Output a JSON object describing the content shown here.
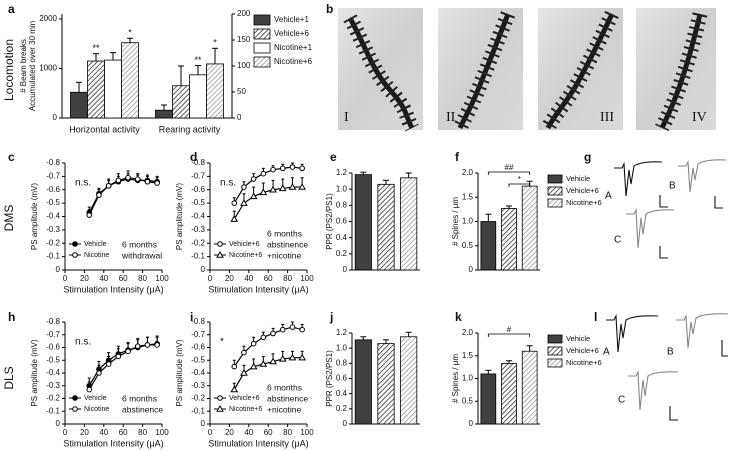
{
  "row_labels": [
    "Locomotion",
    "DMS",
    "DLS"
  ],
  "images": {
    "letter": "b",
    "labels": [
      "I",
      "II",
      "III",
      "IV"
    ]
  },
  "traces": [
    {
      "letter": "g",
      "labels": [
        "A",
        "B",
        "C"
      ]
    },
    {
      "letter": "l",
      "labels": [
        "A",
        "B",
        "C"
      ]
    }
  ],
  "chart_data": [
    {
      "letter": "a",
      "type": "bar",
      "ylabel": [
        "# Beam breaks",
        "Accumulated over 30 min"
      ],
      "categories": [
        "Horizontal activity",
        "Rearing activity"
      ],
      "category_axis": [
        "y",
        "y2"
      ],
      "ylim": [
        0,
        2100
      ],
      "yticks": [
        0,
        1000,
        2000
      ],
      "y2lim": [
        0,
        200
      ],
      "y2ticks": [
        0,
        50,
        100,
        150,
        200
      ],
      "series": [
        {
          "name": "Vehicle+1",
          "color": "#404040",
          "values": [
            520,
            15
          ],
          "errors": [
            200,
            10
          ]
        },
        {
          "name": "Vehicle+6",
          "color": "#ffffff",
          "hatch": "#333333",
          "values": [
            1150,
            62
          ],
          "errors": [
            150,
            38
          ]
        },
        {
          "name": "Nicotine+1",
          "color": "#ffffff",
          "values": [
            1170,
            83
          ],
          "errors": [
            150,
            18
          ]
        },
        {
          "name": "Nicotine+6",
          "color": "#ffffff",
          "hatch": "#9a9a9a",
          "values": [
            1520,
            104
          ],
          "errors": [
            90,
            30
          ]
        }
      ],
      "annotations": [
        "**",
        "*",
        "**",
        "*"
      ]
    },
    {
      "letter": "c",
      "type": "line",
      "xlabel": "Stimulation Intensity (μA)",
      "ylabel": "PS amplitude (mV)",
      "x": [
        25,
        35,
        45,
        55,
        65,
        75,
        85,
        95
      ],
      "xlim": [
        0,
        100
      ],
      "xticks": [
        0,
        20,
        40,
        60,
        80,
        100
      ],
      "ylim": [
        0,
        -0.8
      ],
      "yticks": [
        0,
        -0.1,
        -0.2,
        -0.3,
        -0.4,
        -0.5,
        -0.6,
        -0.7,
        -0.8
      ],
      "series": [
        {
          "name": "Vehicle",
          "color": "#000000",
          "marker": "filled-circle",
          "values": [
            -0.43,
            -0.57,
            -0.63,
            -0.66,
            -0.68,
            -0.67,
            -0.67,
            -0.66
          ],
          "errors": [
            0.04,
            0.04,
            0.04,
            0.04,
            0.04,
            0.04,
            0.04,
            0.04
          ]
        },
        {
          "name": "Nicotine",
          "color": "#000000",
          "marker": "open-circle",
          "values": [
            -0.41,
            -0.56,
            -0.63,
            -0.67,
            -0.69,
            -0.68,
            -0.66,
            -0.65
          ],
          "errors": [
            0.04,
            0.04,
            0.05,
            0.05,
            0.05,
            0.04,
            0.04,
            0.04
          ]
        }
      ],
      "legend": "lower left",
      "annotations": [
        "n.s."
      ],
      "condition": [
        "6 months",
        "withdrawal"
      ]
    },
    {
      "letter": "d",
      "type": "line",
      "xlabel": "Stimulation Intensity (μA)",
      "ylabel": "PS amplitude (mV)",
      "x": [
        25,
        35,
        45,
        55,
        65,
        75,
        85,
        95
      ],
      "xlim": [
        0,
        100
      ],
      "xticks": [
        0,
        20,
        40,
        60,
        80,
        100
      ],
      "ylim": [
        0,
        -0.8
      ],
      "yticks": [
        0,
        -0.1,
        -0.2,
        -0.3,
        -0.4,
        -0.5,
        -0.6,
        -0.7,
        -0.8
      ],
      "series": [
        {
          "name": "Vehicle+6",
          "color": "#000000",
          "marker": "open-circle",
          "values": [
            -0.5,
            -0.62,
            -0.68,
            -0.72,
            -0.75,
            -0.76,
            -0.77,
            -0.76
          ],
          "errors": [
            0.04,
            0.04,
            0.04,
            0.04,
            0.03,
            0.03,
            0.03,
            0.03
          ]
        },
        {
          "name": "Nicotine+6",
          "color": "#000000",
          "marker": "open-triangle",
          "values": [
            -0.38,
            -0.5,
            -0.55,
            -0.58,
            -0.6,
            -0.61,
            -0.62,
            -0.62
          ],
          "errors": [
            0.06,
            0.07,
            0.07,
            0.07,
            0.07,
            0.07,
            0.07,
            0.07
          ]
        }
      ],
      "legend": "lower left",
      "annotations": [
        "n.s."
      ],
      "condition": [
        "6 months",
        "abstinence",
        "+nicotine"
      ]
    },
    {
      "letter": "e",
      "type": "bar",
      "ylabel": "PPR (PS2/PS1)",
      "ylim": [
        0,
        1.2
      ],
      "yticks": [
        0,
        0.2,
        0.4,
        0.6,
        0.8,
        {
          "value": 1,
          "label": "1.0"
        },
        1.2
      ],
      "bars": [
        {
          "color": "#404040"
        },
        {
          "color": "#ffffff",
          "hatch": "#333333"
        },
        {
          "color": "#ffffff",
          "hatch": "#9a9a9a"
        }
      ],
      "values": [
        1.18,
        1.06,
        1.14
      ],
      "errors": [
        0.03,
        0.05,
        0.06
      ]
    },
    {
      "letter": "f",
      "type": "bar",
      "ylabel": "# Spines / μm",
      "ylim": [
        0,
        2
      ],
      "yticks": [
        0,
        0.5,
        {
          "value": 1,
          "label": "1.0"
        },
        1.5,
        {
          "value": 2,
          "label": "2.0"
        }
      ],
      "bars": [
        {
          "name": "Vehicle",
          "color": "#404040"
        },
        {
          "name": "Vehicle+6",
          "color": "#ffffff",
          "hatch": "#333333"
        },
        {
          "name": "Nicotine+6",
          "color": "#ffffff",
          "hatch": "#9a9a9a"
        }
      ],
      "values": [
        1.0,
        1.27,
        1.73
      ],
      "errors": [
        0.15,
        0.05,
        0.1
      ],
      "annotations": [
        "##",
        "*"
      ]
    },
    {
      "letter": "h",
      "type": "line",
      "xlabel": "Stimulation Intensity (μA)",
      "ylabel": "PS amplitude (mV)",
      "x": [
        25,
        35,
        45,
        55,
        65,
        75,
        85,
        95
      ],
      "xlim": [
        0,
        100
      ],
      "xticks": [
        0,
        20,
        40,
        60,
        80,
        100
      ],
      "ylim": [
        0,
        -0.8
      ],
      "yticks": [
        0,
        -0.1,
        -0.2,
        -0.3,
        -0.4,
        -0.5,
        -0.6,
        -0.7,
        -0.8
      ],
      "series": [
        {
          "name": "Vehicle",
          "color": "#000000",
          "marker": "filled-circle",
          "values": [
            -0.3,
            -0.43,
            -0.5,
            -0.55,
            -0.58,
            -0.6,
            -0.62,
            -0.63
          ],
          "errors": [
            0.06,
            0.06,
            0.06,
            0.06,
            0.06,
            0.06,
            0.06,
            0.06
          ]
        },
        {
          "name": "Nicotine",
          "color": "#000000",
          "marker": "open-circle",
          "values": [
            -0.27,
            -0.4,
            -0.47,
            -0.53,
            -0.57,
            -0.61,
            -0.62,
            -0.62
          ],
          "errors": [
            0.06,
            0.06,
            0.06,
            0.06,
            0.06,
            0.06,
            0.06,
            0.06
          ]
        }
      ],
      "legend": "lower left",
      "annotations": [
        "n.s."
      ],
      "condition": [
        "6 months",
        "abstinence"
      ]
    },
    {
      "letter": "i",
      "type": "line",
      "xlabel": "Stimulation Intensity (μA)",
      "ylabel": "PS amplitude (mV)",
      "x": [
        25,
        35,
        45,
        55,
        65,
        75,
        85,
        95
      ],
      "xlim": [
        0,
        100
      ],
      "xticks": [
        0,
        20,
        40,
        60,
        80,
        100
      ],
      "ylim": [
        0,
        -0.8
      ],
      "yticks": [
        0,
        -0.1,
        -0.2,
        -0.3,
        -0.4,
        -0.5,
        -0.6,
        -0.7,
        -0.8
      ],
      "series": [
        {
          "name": "Vehicle+6",
          "color": "#000000",
          "marker": "open-circle",
          "values": [
            -0.45,
            -0.56,
            -0.63,
            -0.68,
            -0.71,
            -0.74,
            -0.76,
            -0.74
          ],
          "errors": [
            0.05,
            0.05,
            0.05,
            0.04,
            0.04,
            0.04,
            0.04,
            0.04
          ]
        },
        {
          "name": "Nicotine+6",
          "color": "#000000",
          "marker": "open-triangle",
          "values": [
            -0.27,
            -0.4,
            -0.45,
            -0.47,
            -0.49,
            -0.51,
            -0.52,
            -0.52
          ],
          "errors": [
            0.05,
            0.06,
            0.06,
            0.06,
            0.06,
            0.06,
            0.05,
            0.05
          ]
        }
      ],
      "legend": "lower left",
      "annotations": [
        "*"
      ],
      "condition": [
        "6 months",
        "abstinence",
        "+nicotine"
      ]
    },
    {
      "letter": "j",
      "type": "bar",
      "ylabel": "PPR (PS2/PS1)",
      "ylim": [
        0,
        1.2
      ],
      "yticks": [
        0,
        0.2,
        0.4,
        0.6,
        0.8,
        {
          "value": 1,
          "label": "1.0"
        },
        1.2
      ],
      "bars": [
        {
          "color": "#404040"
        },
        {
          "color": "#ffffff",
          "hatch": "#333333"
        },
        {
          "color": "#ffffff",
          "hatch": "#9a9a9a"
        }
      ],
      "values": [
        1.11,
        1.06,
        1.15
      ],
      "errors": [
        0.04,
        0.05,
        0.06
      ]
    },
    {
      "letter": "k",
      "type": "bar",
      "ylabel": "# Spines / μm",
      "ylim": [
        0,
        2
      ],
      "yticks": [
        0,
        0.5,
        {
          "value": 1,
          "label": "1.0"
        },
        1.5,
        {
          "value": 2,
          "label": "2.0"
        }
      ],
      "bars": [
        {
          "name": "Vehicle",
          "color": "#404040"
        },
        {
          "name": "Vehicle+6",
          "color": "#ffffff",
          "hatch": "#333333"
        },
        {
          "name": "Nicotine+6",
          "color": "#ffffff",
          "hatch": "#9a9a9a"
        }
      ],
      "values": [
        1.1,
        1.33,
        1.6
      ],
      "errors": [
        0.08,
        0.06,
        0.12
      ],
      "annotations": [
        "#"
      ]
    }
  ]
}
